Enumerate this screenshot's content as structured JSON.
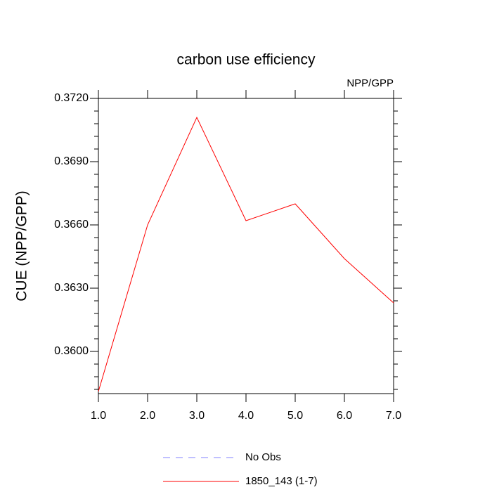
{
  "chart_data": {
    "type": "line",
    "title": "carbon use efficiency",
    "subtitle": "NPP/GPP",
    "y_label": "CUE  (NPP/GPP)",
    "x": [
      1,
      2,
      3,
      4,
      5,
      6,
      7
    ],
    "series": [
      {
        "color": "#ff0000",
        "values": [
          0.3581,
          0.366,
          0.3711,
          0.3662,
          0.367,
          0.3644,
          0.3623
        ]
      }
    ],
    "legend": [
      {
        "name": "No Obs",
        "color": "#8080ff",
        "dashed": true
      },
      {
        "name": "1850_143 (1-7)",
        "color": "#ff0000",
        "dashed": false
      }
    ],
    "xlim": [
      1,
      7
    ],
    "xticks": [
      {
        "value": 1,
        "label": "1.0"
      },
      {
        "value": 2,
        "label": "2.0"
      },
      {
        "value": 3,
        "label": "3.0"
      },
      {
        "value": 4,
        "label": "4.0"
      },
      {
        "value": 5,
        "label": "5.0"
      },
      {
        "value": 6,
        "label": "6.0"
      },
      {
        "value": 7,
        "label": "7.0"
      }
    ],
    "ylim": [
      0.358,
      0.372
    ],
    "yticks": [
      {
        "value": 0.36,
        "label": "0.3600"
      },
      {
        "value": 0.363,
        "label": "0.3630"
      },
      {
        "value": 0.366,
        "label": "0.3660"
      },
      {
        "value": 0.369,
        "label": "0.3690"
      },
      {
        "value": 0.372,
        "label": "0.3720"
      }
    ],
    "yminorticks": [
      0.3582,
      0.3588,
      0.3594,
      0.3606,
      0.3612,
      0.3618,
      0.3624,
      0.3636,
      0.3642,
      0.3648,
      0.3654,
      0.3666,
      0.3672,
      0.3678,
      0.3684,
      0.3696,
      0.3702,
      0.3708,
      0.3714
    ],
    "grid": false
  }
}
